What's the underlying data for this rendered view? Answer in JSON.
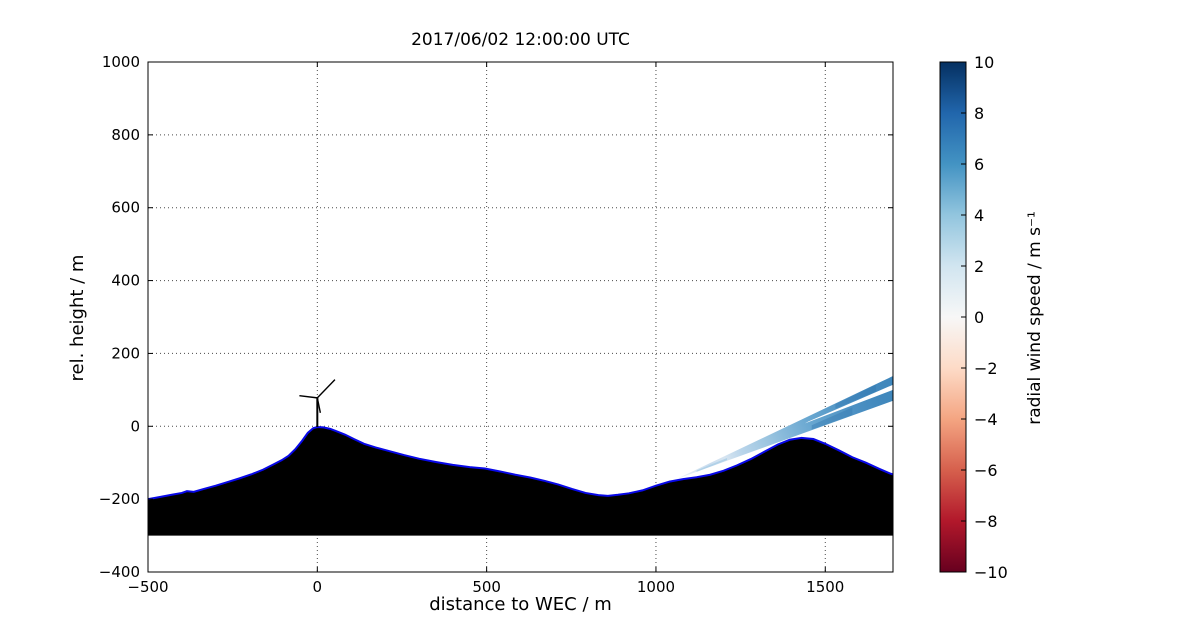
{
  "figure": {
    "background": "#ffffff"
  },
  "chart_data": {
    "type": "area",
    "title": "2017/06/02 12:00:00 UTC",
    "xlabel": "distance to WEC / m",
    "ylabel": "rel. height / m",
    "xlim": [
      -500,
      1700
    ],
    "ylim": [
      -400,
      1000
    ],
    "xticks": [
      -500,
      0,
      500,
      1000,
      1500
    ],
    "yticks": [
      -400,
      -200,
      0,
      200,
      400,
      600,
      800,
      1000
    ],
    "grid": true,
    "grid_style": {
      "color": "#4a4a4a",
      "dash": "1 3"
    },
    "axis_color": "#000000",
    "terrain": {
      "description": "terrain elevation profile, black silhouette with blue top outline, filled down to -300 m",
      "base_y": -300,
      "fill": "#000000",
      "outline": "#0808e8",
      "points": [
        [
          -500,
          -200
        ],
        [
          -465,
          -194
        ],
        [
          -430,
          -188
        ],
        [
          -400,
          -183
        ],
        [
          -385,
          -178
        ],
        [
          -365,
          -180
        ],
        [
          -335,
          -172
        ],
        [
          -300,
          -163
        ],
        [
          -265,
          -153
        ],
        [
          -230,
          -143
        ],
        [
          -195,
          -132
        ],
        [
          -160,
          -119
        ],
        [
          -130,
          -105
        ],
        [
          -105,
          -93
        ],
        [
          -85,
          -81
        ],
        [
          -65,
          -63
        ],
        [
          -45,
          -40
        ],
        [
          -28,
          -18
        ],
        [
          -12,
          -5
        ],
        [
          0,
          -2
        ],
        [
          18,
          -3
        ],
        [
          38,
          -7
        ],
        [
          58,
          -14
        ],
        [
          82,
          -23
        ],
        [
          108,
          -35
        ],
        [
          138,
          -48
        ],
        [
          172,
          -58
        ],
        [
          212,
          -68
        ],
        [
          256,
          -79
        ],
        [
          300,
          -89
        ],
        [
          350,
          -98
        ],
        [
          400,
          -106
        ],
        [
          450,
          -112
        ],
        [
          495,
          -116
        ],
        [
          540,
          -124
        ],
        [
          585,
          -133
        ],
        [
          630,
          -141
        ],
        [
          672,
          -150
        ],
        [
          712,
          -160
        ],
        [
          752,
          -172
        ],
        [
          792,
          -183
        ],
        [
          830,
          -189
        ],
        [
          858,
          -191
        ],
        [
          888,
          -188
        ],
        [
          920,
          -184
        ],
        [
          960,
          -176
        ],
        [
          1000,
          -163
        ],
        [
          1040,
          -152
        ],
        [
          1080,
          -145
        ],
        [
          1120,
          -140
        ],
        [
          1160,
          -133
        ],
        [
          1200,
          -122
        ],
        [
          1240,
          -107
        ],
        [
          1280,
          -90
        ],
        [
          1320,
          -70
        ],
        [
          1360,
          -50
        ],
        [
          1395,
          -37
        ],
        [
          1430,
          -32
        ],
        [
          1465,
          -35
        ],
        [
          1500,
          -48
        ],
        [
          1540,
          -66
        ],
        [
          1580,
          -85
        ],
        [
          1620,
          -100
        ],
        [
          1660,
          -117
        ],
        [
          1690,
          -129
        ],
        [
          1700,
          -132
        ]
      ]
    },
    "turbine": {
      "description": "wind energy converter (WEC) sketch at x=0 on hill top, hub height ~80 m",
      "color": "#000000",
      "segments": [
        {
          "from": [
            0,
            -2
          ],
          "to": [
            0,
            78
          ],
          "width": 2
        },
        {
          "from": [
            0,
            78
          ],
          "to": [
            52,
            128
          ],
          "width": 1.4
        },
        {
          "from": [
            0,
            78
          ],
          "to": [
            -53,
            84
          ],
          "width": 1.4
        },
        {
          "from": [
            0,
            78
          ],
          "to": [
            9,
            37
          ],
          "width": 1.4
        }
      ]
    },
    "lidar_beam": {
      "description": "diagonal lidar scan swath of radial wind speed, fanning out from terrain in valley toward upper right",
      "apex": [
        1060,
        -145
      ],
      "top_end": [
        1700,
        138
      ],
      "bottom_end": [
        1700,
        70
      ],
      "gap_polygon": [
        [
          1440,
          8
        ],
        [
          1700,
          100
        ],
        [
          1700,
          114
        ],
        [
          1450,
          13
        ]
      ],
      "samples_radial_wind_speed": [
        {
          "x": 1080,
          "v": 0.5
        },
        {
          "x": 1150,
          "v": 1.5
        },
        {
          "x": 1250,
          "v": 2.0
        },
        {
          "x": 1350,
          "v": 3.0
        },
        {
          "x": 1430,
          "v": 4.0
        },
        {
          "x": 1520,
          "v": 4.5
        },
        {
          "x": 1600,
          "v": 5.0
        },
        {
          "x": 1700,
          "v": 5.5
        }
      ],
      "gradient": [
        [
          "0%",
          "#eef4f9"
        ],
        [
          "8%",
          "#dde9f3"
        ],
        [
          "15%",
          "#c9dcee"
        ],
        [
          "22%",
          "#d7e5f1"
        ],
        [
          "30%",
          "#b8d4ea"
        ],
        [
          "40%",
          "#9fc7e1"
        ],
        [
          "50%",
          "#84b7d9"
        ],
        [
          "60%",
          "#6aa8d1"
        ],
        [
          "70%",
          "#5a9cc9"
        ],
        [
          "80%",
          "#4c90c3"
        ],
        [
          "90%",
          "#4289bd"
        ],
        [
          "100%",
          "#3e86bc"
        ]
      ],
      "patches": [
        {
          "points": [
            [
              1120,
              -125
            ],
            [
              1210,
              -93
            ],
            [
              1210,
              -87
            ],
            [
              1120,
              -121
            ]
          ],
          "fill": "#a9cde6",
          "opacity": 0.8
        },
        {
          "points": [
            [
              1460,
              -9
            ],
            [
              1580,
              31
            ],
            [
              1580,
              52
            ],
            [
              1460,
              3
            ]
          ],
          "fill": "#3579b2",
          "opacity": 0.45
        },
        {
          "points": [
            [
              1530,
              48
            ],
            [
              1650,
              96
            ],
            [
              1650,
              114
            ],
            [
              1530,
              61
            ]
          ],
          "fill": "#2f76b0",
          "opacity": 0.4
        }
      ]
    },
    "colorbar": {
      "label": "radial wind speed / m s⁻¹",
      "min": -10,
      "max": 10,
      "ticks": [
        10,
        8,
        6,
        4,
        2,
        0,
        -2,
        -4,
        -6,
        -8,
        -10
      ],
      "colormap": "RdBu",
      "stops": [
        [
          "0%",
          "#053061"
        ],
        [
          "10%",
          "#2166ac"
        ],
        [
          "20%",
          "#4393c3"
        ],
        [
          "30%",
          "#92c5de"
        ],
        [
          "40%",
          "#d1e5f0"
        ],
        [
          "50%",
          "#f7f7f7"
        ],
        [
          "60%",
          "#fddbc7"
        ],
        [
          "70%",
          "#f4a582"
        ],
        [
          "80%",
          "#d6604d"
        ],
        [
          "90%",
          "#b2182b"
        ],
        [
          "100%",
          "#67001f"
        ]
      ]
    }
  }
}
